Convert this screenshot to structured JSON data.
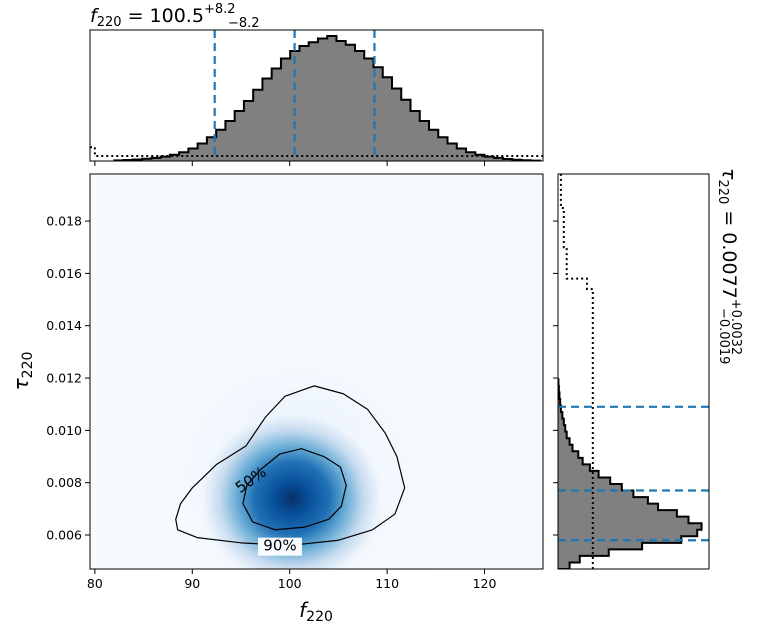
{
  "chart_data": {
    "type": "corner",
    "joint": {
      "type": "heatmap",
      "xlabel": "f",
      "xlabel_sub": "220",
      "ylabel": "τ",
      "ylabel_sub": "220",
      "xlim": [
        79.5,
        126.0
      ],
      "ylim": [
        0.0047,
        0.0198
      ],
      "xticks": [
        "80",
        "90",
        "100",
        "110",
        "120"
      ],
      "yticks": [
        "0.006",
        "0.008",
        "0.010",
        "0.012",
        "0.014",
        "0.016",
        "0.018"
      ],
      "xtick_values": [
        80,
        90,
        100,
        110,
        120
      ],
      "ytick_values": [
        0.006,
        0.008,
        0.01,
        0.012,
        0.014,
        0.016,
        0.018
      ],
      "peak": {
        "x": 100.2,
        "y": 0.0074
      },
      "colormap": "Blues",
      "contours": [
        {
          "label": "50%",
          "level": 0.5,
          "points": [
            [
              95.2,
              0.0072
            ],
            [
              95.6,
              0.0079
            ],
            [
              97.0,
              0.0085
            ],
            [
              99.0,
              0.0091
            ],
            [
              101.2,
              0.0093
            ],
            [
              103.5,
              0.009
            ],
            [
              105.2,
              0.0086
            ],
            [
              105.8,
              0.0079
            ],
            [
              105.3,
              0.0071
            ],
            [
              104.0,
              0.0066
            ],
            [
              101.5,
              0.0063
            ],
            [
              98.5,
              0.0062
            ],
            [
              96.2,
              0.0065
            ]
          ]
        },
        {
          "label": "90%",
          "level": 0.9,
          "points": [
            [
              88.3,
              0.0066
            ],
            [
              88.8,
              0.0072
            ],
            [
              90.0,
              0.0078
            ],
            [
              92.5,
              0.0087
            ],
            [
              95.5,
              0.0094
            ],
            [
              97.5,
              0.0105
            ],
            [
              99.5,
              0.0113
            ],
            [
              102.5,
              0.0117
            ],
            [
              105.5,
              0.0114
            ],
            [
              108.0,
              0.0108
            ],
            [
              109.8,
              0.0099
            ],
            [
              111.0,
              0.009
            ],
            [
              111.8,
              0.0078
            ],
            [
              110.8,
              0.0068
            ],
            [
              108.5,
              0.0062
            ],
            [
              105.0,
              0.0058
            ],
            [
              100.0,
              0.0056
            ],
            [
              95.0,
              0.0057
            ],
            [
              90.5,
              0.0059
            ],
            [
              88.5,
              0.0062
            ]
          ]
        }
      ]
    },
    "marginal_x": {
      "type": "histogram",
      "summary_var": "f",
      "summary_sub": "220",
      "summary_value": "100.5",
      "summary_plus": "+8.2",
      "summary_minus": "−8.2",
      "median": 100.5,
      "quantiles": [
        92.3,
        108.7
      ],
      "bin_edges_start": 82.0,
      "bin_width": 0.95,
      "counts": [
        0.005,
        0.008,
        0.012,
        0.018,
        0.025,
        0.035,
        0.05,
        0.07,
        0.1,
        0.14,
        0.19,
        0.25,
        0.32,
        0.4,
        0.48,
        0.57,
        0.66,
        0.74,
        0.82,
        0.88,
        0.92,
        0.95,
        0.98,
        1.0,
        0.96,
        0.93,
        0.88,
        0.82,
        0.75,
        0.67,
        0.58,
        0.49,
        0.4,
        0.32,
        0.25,
        0.19,
        0.14,
        0.1,
        0.07,
        0.05,
        0.035,
        0.025,
        0.016,
        0.01,
        0.006,
        0.003
      ],
      "prior_level": 0.04,
      "prior_edge_points": [
        [
          79.5,
          0.11
        ],
        [
          80.0,
          0.11
        ],
        [
          80.0,
          0.04
        ],
        [
          126.0,
          0.04
        ]
      ]
    },
    "marginal_y": {
      "type": "histogram",
      "orientation": "horizontal",
      "summary_var": "τ",
      "summary_sub": "220",
      "summary_value": "0.0077",
      "summary_plus": "+0.0032",
      "summary_minus": "−0.0019",
      "median": 0.0077,
      "quantiles": [
        0.0058,
        0.0109
      ],
      "bin_edges_start": 0.0047,
      "bin_width": 0.00025,
      "counts": [
        0.08,
        0.15,
        0.35,
        0.58,
        0.85,
        0.96,
        0.99,
        0.9,
        0.82,
        0.69,
        0.62,
        0.52,
        0.44,
        0.36,
        0.28,
        0.22,
        0.17,
        0.14,
        0.1,
        0.08,
        0.06,
        0.05,
        0.04,
        0.03,
        0.02,
        0.015,
        0.01,
        0.006,
        0.003
      ],
      "prior_points": [
        [
          0.0047,
          0.24
        ],
        [
          0.0154,
          0.24
        ],
        [
          0.0154,
          0.2
        ],
        [
          0.0158,
          0.2
        ],
        [
          0.0158,
          0.06
        ],
        [
          0.017,
          0.06
        ],
        [
          0.017,
          0.04
        ],
        [
          0.0185,
          0.04
        ],
        [
          0.0185,
          0.02
        ],
        [
          0.0198,
          0.02
        ]
      ]
    }
  }
}
